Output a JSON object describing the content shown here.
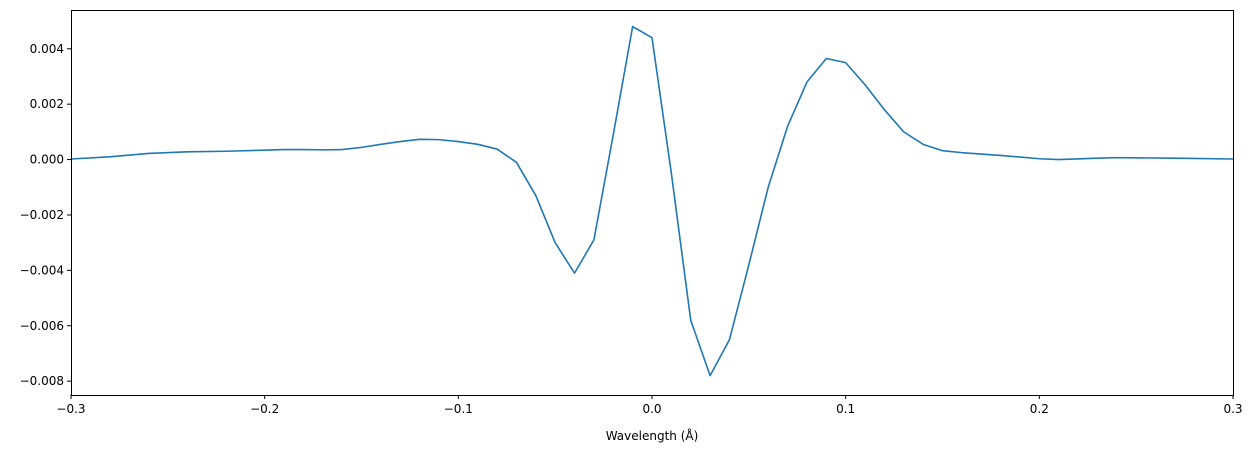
{
  "chart_data": {
    "type": "line",
    "title": "",
    "xlabel": "Wavelength (Å)",
    "ylabel": "",
    "xlim": [
      -0.3,
      0.3
    ],
    "ylim": [
      -0.0085,
      0.0054
    ],
    "grid": false,
    "x_ticks": [
      -0.3,
      -0.2,
      -0.1,
      0.0,
      0.1,
      0.2,
      0.3
    ],
    "x_tick_labels": [
      "−0.3",
      "−0.2",
      "−0.1",
      "0.0",
      "0.1",
      "0.2",
      "0.3"
    ],
    "y_ticks": [
      -0.008,
      -0.006,
      -0.004,
      -0.002,
      0.0,
      0.002,
      0.004
    ],
    "y_tick_labels": [
      "−0.008",
      "−0.006",
      "−0.004",
      "−0.002",
      "0.000",
      "0.002",
      "0.004"
    ],
    "series": [
      {
        "color": "#1f77b4",
        "x": [
          -0.3,
          -0.28,
          -0.26,
          -0.24,
          -0.22,
          -0.2,
          -0.19,
          -0.18,
          -0.17,
          -0.16,
          -0.15,
          -0.14,
          -0.13,
          -0.12,
          -0.11,
          -0.1,
          -0.09,
          -0.08,
          -0.07,
          -0.06,
          -0.05,
          -0.04,
          -0.03,
          -0.02,
          -0.01,
          0.0,
          0.01,
          0.02,
          0.03,
          0.04,
          0.05,
          0.06,
          0.07,
          0.08,
          0.09,
          0.1,
          0.11,
          0.12,
          0.13,
          0.14,
          0.15,
          0.16,
          0.18,
          0.2,
          0.21,
          0.23,
          0.24,
          0.27,
          0.3
        ],
        "y": [
          2e-05,
          0.0001,
          0.00022,
          0.00028,
          0.0003,
          0.00034,
          0.00036,
          0.00036,
          0.00035,
          0.00036,
          0.00044,
          0.00055,
          0.00065,
          0.00073,
          0.00072,
          0.00065,
          0.00055,
          0.00038,
          -0.0001,
          -0.0013,
          -0.003,
          -0.0041,
          -0.0029,
          0.0009,
          0.0048,
          0.0044,
          -0.0005,
          -0.0058,
          -0.0078,
          -0.0065,
          -0.0038,
          -0.001,
          0.0012,
          0.0028,
          0.00365,
          0.0035,
          0.0027,
          0.0018,
          0.001,
          0.00055,
          0.00032,
          0.00025,
          0.00015,
          3e-05,
          0.0,
          5e-05,
          7e-05,
          5e-05,
          2e-05
        ]
      }
    ]
  }
}
